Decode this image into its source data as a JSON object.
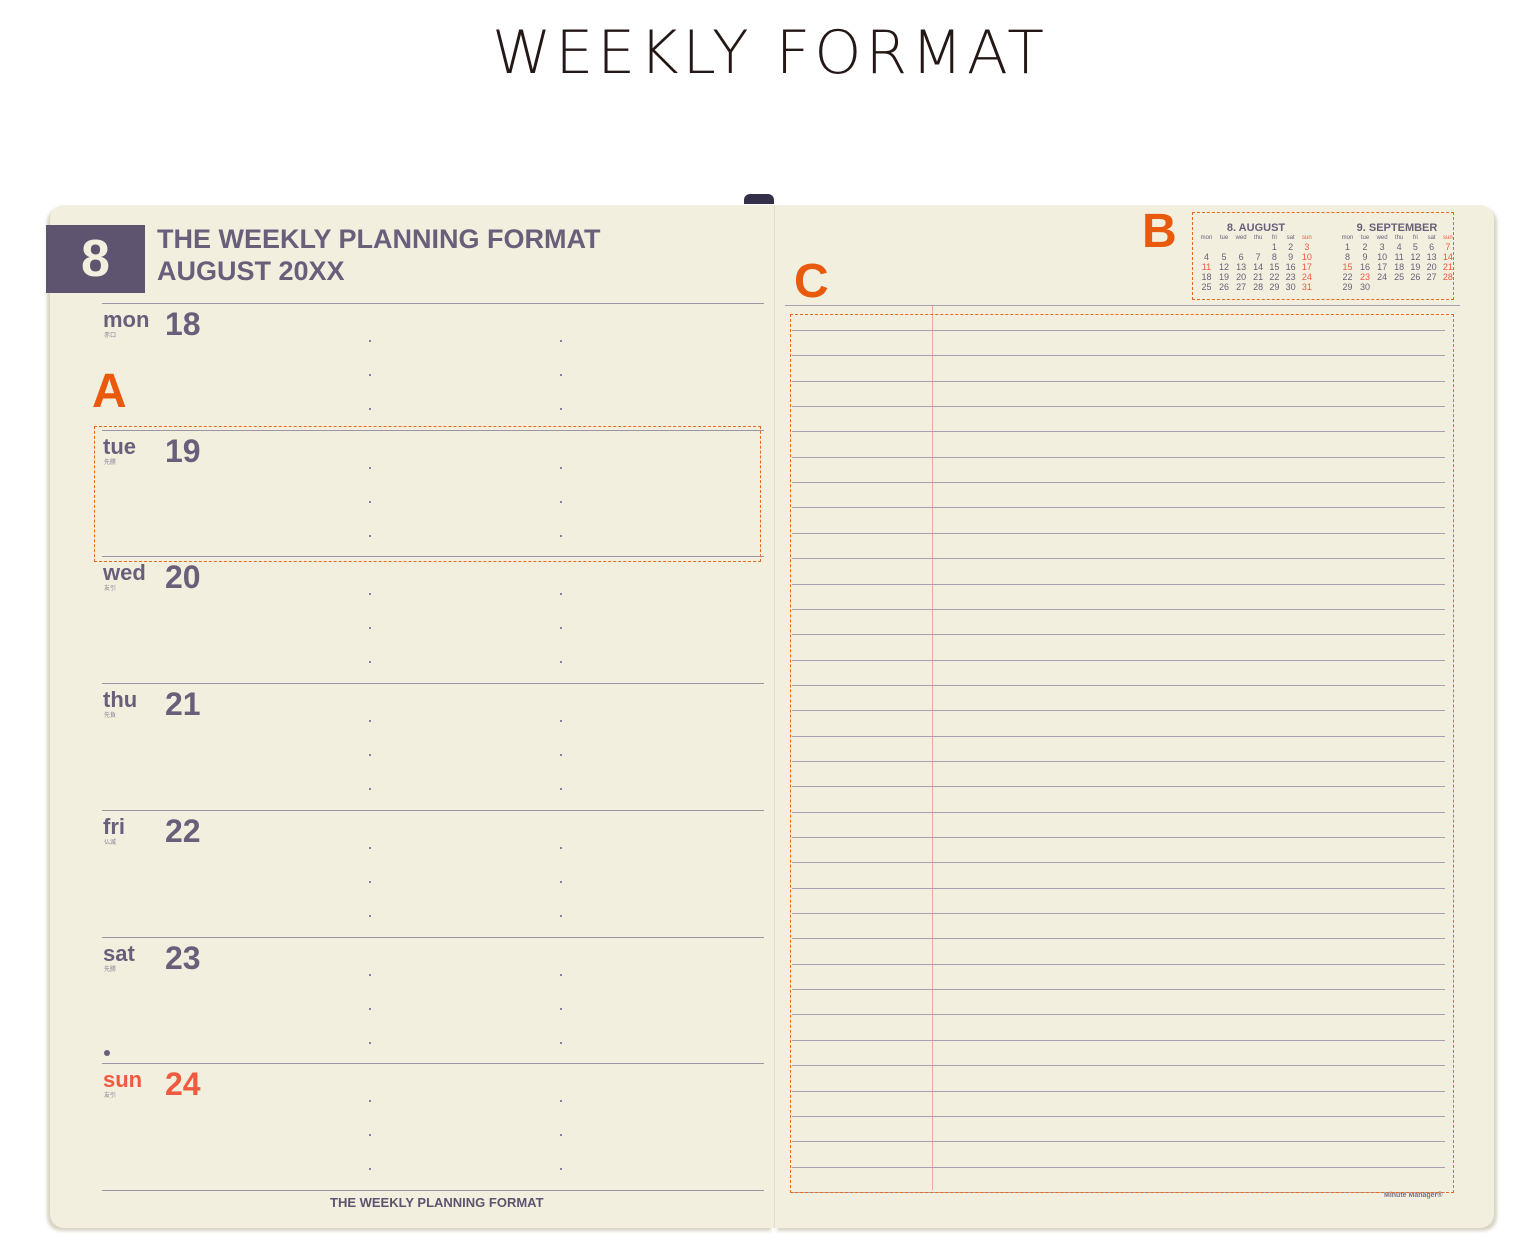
{
  "title": "WEEKLY FORMAT",
  "colors": {
    "accent": "#ea5a0c",
    "ink": "#6a5f7a",
    "sunday": "#ef5a40",
    "paper": "#f3efdf"
  },
  "left_page": {
    "month_number": "8",
    "header_line1": "THE WEEKLY PLANNING FORMAT",
    "header_line2": "AUGUST  20XX",
    "days": [
      {
        "name": "mon",
        "num": "18",
        "rokuyo": "赤口"
      },
      {
        "name": "tue",
        "num": "19",
        "rokuyo": "先勝"
      },
      {
        "name": "wed",
        "num": "20",
        "rokuyo": "友引"
      },
      {
        "name": "thu",
        "num": "21",
        "rokuyo": "先負"
      },
      {
        "name": "fri",
        "num": "22",
        "rokuyo": "仏滅"
      },
      {
        "name": "sat",
        "num": "23",
        "rokuyo": "先勝"
      },
      {
        "name": "sun",
        "num": "24",
        "rokuyo": "友引",
        "holiday": true
      }
    ],
    "footer": "THE WEEKLY PLANNING FORMAT"
  },
  "annotations": {
    "a": "A",
    "b": "B",
    "c": "C"
  },
  "right_page": {
    "brand": "Minute Manager®",
    "calendars": [
      {
        "title": "8. AUGUST",
        "weekdays": [
          "mon",
          "tue",
          "wed",
          "thu",
          "fri",
          "sat",
          "sun"
        ],
        "weeks": [
          [
            "",
            "",
            "",
            "",
            "1",
            "2",
            "3"
          ],
          [
            "4",
            "5",
            "6",
            "7",
            "8",
            "9",
            "10"
          ],
          [
            "11",
            "12",
            "13",
            "14",
            "15",
            "16",
            "17"
          ],
          [
            "18",
            "19",
            "20",
            "21",
            "22",
            "23",
            "24"
          ],
          [
            "25",
            "26",
            "27",
            "28",
            "29",
            "30",
            "31"
          ]
        ],
        "red": [
          "3",
          "10",
          "11",
          "17",
          "24",
          "31"
        ]
      },
      {
        "title": "9. SEPTEMBER",
        "weekdays": [
          "mon",
          "tue",
          "wed",
          "thu",
          "fri",
          "sat",
          "sun"
        ],
        "weeks": [
          [
            "1",
            "2",
            "3",
            "4",
            "5",
            "6",
            "7"
          ],
          [
            "8",
            "9",
            "10",
            "11",
            "12",
            "13",
            "14"
          ],
          [
            "15",
            "16",
            "17",
            "18",
            "19",
            "20",
            "21"
          ],
          [
            "22",
            "23",
            "24",
            "25",
            "26",
            "27",
            "28"
          ],
          [
            "29",
            "30",
            "",
            "",
            "",
            "",
            ""
          ]
        ],
        "red": [
          "7",
          "14",
          "15",
          "21",
          "23",
          "28"
        ]
      }
    ]
  }
}
